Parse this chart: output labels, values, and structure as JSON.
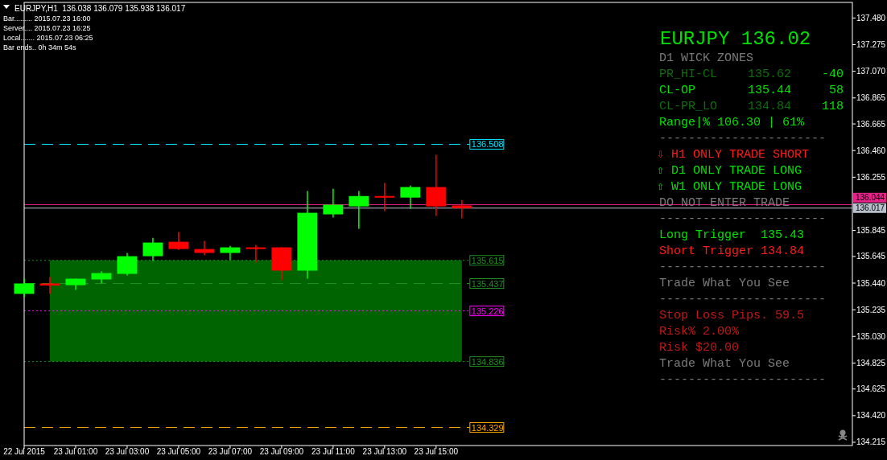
{
  "chart_data": {
    "type": "candlestick",
    "title": "EURJPY,H1  136.038 136.079 135.938 136.017",
    "x": [
      "2015-07-22T23:00",
      "2015-07-23T00:00",
      "2015-07-23T01:00",
      "2015-07-23T02:00",
      "2015-07-23T03:00",
      "2015-07-23T04:00",
      "2015-07-23T05:00",
      "2015-07-23T06:00",
      "2015-07-23T07:00",
      "2015-07-23T08:00",
      "2015-07-23T09:00",
      "2015-07-23T10:00",
      "2015-07-23T11:00",
      "2015-07-23T12:00",
      "2015-07-23T13:00",
      "2015-07-23T14:00",
      "2015-07-23T15:00",
      "2015-07-23T16:00"
    ],
    "ohlc": [
      [
        135.357,
        135.475,
        135.332,
        135.437
      ],
      [
        135.437,
        135.487,
        135.357,
        135.421
      ],
      [
        135.424,
        135.474,
        135.387,
        135.474
      ],
      [
        135.468,
        135.53,
        135.437,
        135.517
      ],
      [
        135.511,
        135.672,
        135.499,
        135.647
      ],
      [
        135.647,
        135.789,
        135.61,
        135.752
      ],
      [
        135.758,
        135.833,
        135.696,
        135.702
      ],
      [
        135.702,
        135.765,
        135.654,
        135.672
      ],
      [
        135.672,
        135.727,
        135.616,
        135.715
      ],
      [
        135.715,
        135.734,
        135.598,
        135.702
      ],
      [
        135.715,
        135.715,
        135.462,
        135.536
      ],
      [
        135.536,
        136.148,
        135.474,
        135.981
      ],
      [
        135.969,
        136.166,
        135.944,
        136.043
      ],
      [
        136.03,
        136.148,
        135.858,
        136.11
      ],
      [
        136.11,
        136.21,
        135.994,
        136.098
      ],
      [
        136.098,
        136.191,
        136.012,
        136.179
      ],
      [
        136.179,
        136.427,
        135.957,
        136.03
      ],
      [
        136.038,
        136.079,
        135.938,
        136.017
      ]
    ],
    "colors": [
      "#00ff00",
      "#ff0000",
      "#00ff00",
      "#00ff00",
      "#00ff00",
      "#00ff00",
      "#ff0000",
      "#ff0000",
      "#00ff00",
      "#ff0000",
      "#ff0000",
      "#00ff00",
      "#00ff00",
      "#00ff00",
      "#ff0000",
      "#00ff00",
      "#ff0000",
      "#ff0000"
    ],
    "xlim": [
      "2015-07-22T23:00",
      "2015-07-24T07:10"
    ],
    "xticks": [
      {
        "value": "2015-07-22T23:00",
        "label": "22 Jul 2015"
      },
      {
        "value": "2015-07-23T01:00",
        "label": "23 Jul 01:00"
      },
      {
        "value": "2015-07-23T03:00",
        "label": "23 Jul 03:00"
      },
      {
        "value": "2015-07-23T05:00",
        "label": "23 Jul 05:00"
      },
      {
        "value": "2015-07-23T07:00",
        "label": "23 Jul 07:00"
      },
      {
        "value": "2015-07-23T09:00",
        "label": "23 Jul 09:00"
      },
      {
        "value": "2015-07-23T11:00",
        "label": "23 Jul 11:00"
      },
      {
        "value": "2015-07-23T13:00",
        "label": "23 Jul 13:00"
      },
      {
        "value": "2015-07-23T15:00",
        "label": "23 Jul 15:00"
      }
    ],
    "ylim": [
      134.19,
      137.6
    ],
    "yticks": [
      {
        "value": 137.48,
        "label": "137.480"
      },
      {
        "value": 137.275,
        "label": "137.275"
      },
      {
        "value": 137.07,
        "label": "137.070"
      },
      {
        "value": 136.865,
        "label": "136.865"
      },
      {
        "value": 136.665,
        "label": "136.665"
      },
      {
        "value": 136.46,
        "label": "136.460"
      },
      {
        "value": 136.255,
        "label": "136.255"
      },
      {
        "value": 135.845,
        "label": "135.845"
      },
      {
        "value": 135.645,
        "label": "135.645"
      },
      {
        "value": 135.44,
        "label": "135.440"
      },
      {
        "value": 135.235,
        "label": "135.235"
      },
      {
        "value": 135.03,
        "label": "135.030"
      },
      {
        "value": 134.825,
        "label": "134.825"
      },
      {
        "value": 134.625,
        "label": "134.625"
      },
      {
        "value": 134.42,
        "label": "134.420"
      },
      {
        "value": 134.215,
        "label": "134.215"
      }
    ],
    "ref_lines": [
      {
        "axis": "y",
        "value": 136.508,
        "label": "136.508",
        "color": "#00e5ff",
        "line_style": "dashed"
      },
      {
        "axis": "y",
        "value": 136.044,
        "label": "136.044",
        "color": "#e8208a",
        "line_style": "solid"
      },
      {
        "axis": "y",
        "value": 136.017,
        "label": "136.017",
        "color": "#b8c0cc",
        "line_style": "solid"
      },
      {
        "axis": "y",
        "value": 135.615,
        "label": "135.615",
        "color": "#1f8f1f",
        "line_style": "dotted"
      },
      {
        "axis": "y",
        "value": 135.437,
        "label": "135.437",
        "color": "#1f8f1f",
        "line_style": "dashed"
      },
      {
        "axis": "y",
        "value": 135.226,
        "label": "135.226",
        "color": "#ff00ff",
        "line_style": "dotted"
      },
      {
        "axis": "y",
        "value": 134.836,
        "label": "134.836",
        "color": "#1f8f1f",
        "line_style": "dotted"
      },
      {
        "axis": "y",
        "value": 134.329,
        "label": "134.329",
        "color": "#ffa500",
        "line_style": "dashed"
      }
    ],
    "bands": [
      {
        "axis": "y",
        "from": 134.836,
        "to": 135.615,
        "color": "#006400"
      }
    ],
    "grid": false,
    "annotations": [
      "Bar......... 2015.07.23 16:00",
      "Server.... 2015.07.23 16:25",
      "Local....... 2015.07.23 06:25",
      "Bar ends.. 0h 34m 54s",
      "EURJPY 136.02",
      "D1 WICK ZONES",
      "PR_HI-CL",
      "135.62",
      "-40",
      "CL-OP",
      "135.44",
      "58",
      "CL-PR_LO",
      "134.84",
      "118",
      "Range|% 106.30 | 61%",
      "-----------------------",
      "⇩ H1 ONLY TRADE SHORT",
      "⇧ D1 ONLY TRADE LONG",
      "⇧ W1 ONLY TRADE LONG",
      "DO NOT ENTER TRADE",
      "-----------------------",
      "Long Trigger  135.43",
      "Short Trigger 134.84",
      "-----------------------",
      "Trade What You See",
      "-----------------------",
      "Stop Loss Pips. 59.5",
      "Risk% 2.00%",
      "Risk $20.00",
      "Trade What You See",
      "-----------------------"
    ]
  }
}
